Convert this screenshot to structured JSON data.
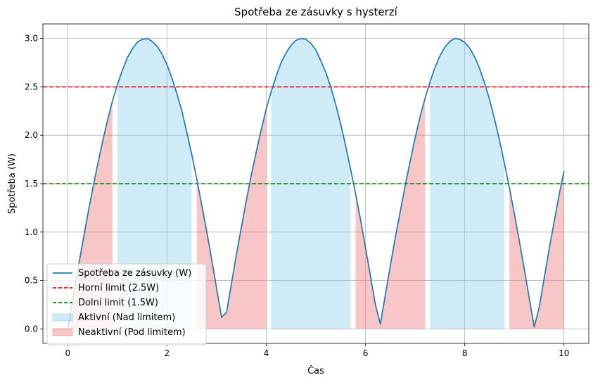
{
  "chart_data": {
    "type": "line",
    "title": "Spotřeba ze zásuvky s hysterzí",
    "xlabel": "Čas",
    "ylabel": "Spotřeba (W)",
    "xlim": [
      -0.5,
      10.5
    ],
    "ylim": [
      -0.15,
      3.15
    ],
    "xticks": [
      0,
      2,
      4,
      6,
      8,
      10
    ],
    "xtick_labels": [
      "0",
      "2",
      "4",
      "6",
      "8",
      "10"
    ],
    "yticks": [
      0.0,
      0.5,
      1.0,
      1.5,
      2.0,
      2.5,
      3.0
    ],
    "ytick_labels": [
      "0.0",
      "0.5",
      "1.0",
      "1.5",
      "2.0",
      "2.5",
      "3.0"
    ],
    "grid": true,
    "legend_position": "lower-left",
    "x": [
      0.0,
      0.1,
      0.2,
      0.3,
      0.4,
      0.5,
      0.6,
      0.7,
      0.8,
      0.9,
      1.0,
      1.1,
      1.2,
      1.3,
      1.4,
      1.5,
      1.6,
      1.7,
      1.8,
      1.9,
      2.0,
      2.1,
      2.2,
      2.3,
      2.4,
      2.5,
      2.6,
      2.7,
      2.8,
      2.9,
      3.0,
      3.1,
      3.2,
      3.3,
      3.4,
      3.5,
      3.6,
      3.7,
      3.8,
      3.9,
      4.0,
      4.1,
      4.2,
      4.3,
      4.4,
      4.5,
      4.6,
      4.7,
      4.8,
      4.9,
      5.0,
      5.1,
      5.2,
      5.3,
      5.4,
      5.5,
      5.6,
      5.7,
      5.8,
      5.9,
      6.0,
      6.1,
      6.2,
      6.3,
      6.4,
      6.5,
      6.6,
      6.7,
      6.8,
      6.9,
      7.0,
      7.1,
      7.2,
      7.3,
      7.4,
      7.5,
      7.6,
      7.7,
      7.8,
      7.9,
      8.0,
      8.1,
      8.2,
      8.3,
      8.4,
      8.5,
      8.6,
      8.7,
      8.8,
      8.9,
      9.0,
      9.1,
      9.2,
      9.3,
      9.4,
      9.5,
      9.6,
      9.7,
      9.8,
      9.9,
      10.0
    ],
    "series": [
      {
        "name": "Spotřeba ze zásuvky (W)",
        "color": "#1f77b4",
        "values": [
          0.0,
          0.3,
          0.6,
          0.89,
          1.17,
          1.44,
          1.69,
          1.93,
          2.15,
          2.35,
          2.52,
          2.67,
          2.8,
          2.89,
          2.96,
          2.99,
          3.0,
          2.97,
          2.92,
          2.84,
          2.73,
          2.59,
          2.43,
          2.25,
          2.03,
          1.8,
          1.55,
          1.28,
          1.01,
          0.72,
          0.42,
          0.12,
          0.17,
          0.47,
          0.77,
          1.05,
          1.33,
          1.59,
          1.83,
          2.06,
          2.27,
          2.45,
          2.61,
          2.75,
          2.85,
          2.93,
          2.98,
          3.0,
          2.99,
          2.95,
          2.88,
          2.77,
          2.65,
          2.5,
          2.32,
          2.12,
          1.89,
          1.65,
          1.4,
          1.13,
          0.84,
          0.55,
          0.25,
          0.05,
          0.35,
          0.65,
          0.94,
          1.21,
          1.48,
          1.73,
          1.97,
          2.19,
          2.38,
          2.55,
          2.7,
          2.82,
          2.91,
          2.97,
          3.0,
          2.99,
          2.96,
          2.9,
          2.81,
          2.69,
          2.54,
          2.37,
          2.17,
          1.95,
          1.71,
          1.46,
          1.19,
          0.91,
          0.62,
          0.32,
          0.02,
          0.22,
          0.52,
          0.82,
          1.1,
          1.38,
          1.63
        ]
      }
    ],
    "reference_lines": [
      {
        "name": "Horní limit (2.5W)",
        "y": 2.5,
        "color": "#ff0000",
        "style": "dashed"
      },
      {
        "name": "Dolní limit (1.5W)",
        "y": 1.5,
        "color": "#008000",
        "style": "dashed"
      }
    ],
    "fill_regions": [
      {
        "name": "Aktivní (Nad limitem)",
        "color": "#87ceeb",
        "opacity": 0.4,
        "ranges": [
          [
            1.0,
            2.5
          ],
          [
            4.1,
            5.7
          ],
          [
            7.3,
            8.8
          ]
        ]
      },
      {
        "name": "Neaktivní (Pod limitem)",
        "color": "#f08080",
        "opacity": 0.45,
        "ranges": [
          [
            0.0,
            0.9
          ],
          [
            2.6,
            4.0
          ],
          [
            5.8,
            7.2
          ],
          [
            8.9,
            10.0
          ]
        ]
      }
    ]
  }
}
